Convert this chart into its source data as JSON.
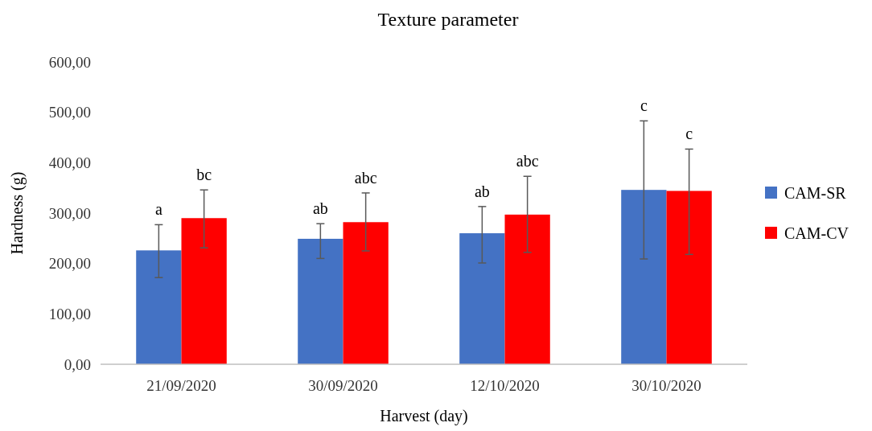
{
  "chart_data": {
    "type": "bar",
    "title": "Texture parameter",
    "xlabel": "Harvest (day)",
    "ylabel": "Hardness (g)",
    "categories": [
      "21/09/2020",
      "30/09/2020",
      "12/10/2020",
      "30/10/2020"
    ],
    "series": [
      {
        "name": "CAM-SR",
        "color": "#4472c4",
        "values": [
          226,
          249,
          260,
          346
        ],
        "errors": [
          [
            172,
            277
          ],
          [
            210,
            279
          ],
          [
            201,
            313
          ],
          [
            209,
            483
          ]
        ]
      },
      {
        "name": "CAM-CV",
        "color": "#ff0000",
        "values": [
          290,
          282,
          297,
          344
        ],
        "errors": [
          [
            231,
            346
          ],
          [
            225,
            340
          ],
          [
            222,
            373
          ],
          [
            218,
            427
          ]
        ]
      }
    ],
    "ylim": [
      0,
      600
    ],
    "yticks": [
      {
        "value": 0,
        "label": "0,00"
      },
      {
        "value": 100,
        "label": "100,00"
      },
      {
        "value": 200,
        "label": "200,00"
      },
      {
        "value": 300,
        "label": "300,00"
      },
      {
        "value": 400,
        "label": "400,00"
      },
      {
        "value": 500,
        "label": "500,00"
      },
      {
        "value": 600,
        "label": "600,00"
      }
    ],
    "legend": "right",
    "annotations": [
      "a",
      "bc",
      "ab",
      "abc",
      "ab",
      "abc",
      "c",
      "c"
    ]
  }
}
